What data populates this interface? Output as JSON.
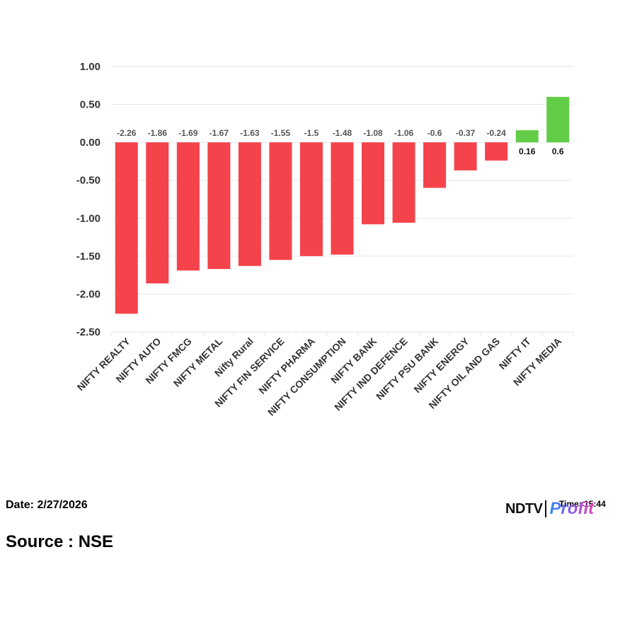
{
  "chart_data": {
    "type": "bar",
    "categories": [
      "NIFTY REALTY",
      "NIFTY AUTO",
      "NIFTY FMCG",
      "NIFTY METAL",
      "Nifty Rural",
      "NIFTY FIN SERVICE",
      "NIFTY PHARMA",
      "NIFTY CONSUMPTION",
      "NIFTY BANK",
      "NIFTY IND DEFENCE",
      "NIFTY PSU BANK",
      "NIFTY ENERGY",
      "NIFTY OIL AND GAS",
      "NIFTY IT",
      "NIFTY MEDIA"
    ],
    "values": [
      -2.26,
      -1.86,
      -1.69,
      -1.67,
      -1.63,
      -1.55,
      -1.5,
      -1.48,
      -1.08,
      -1.06,
      -0.6,
      -0.37,
      -0.24,
      0.16,
      0.6
    ],
    "value_labels": [
      "-2.26",
      "-1.86",
      "-1.69",
      "-1.67",
      "-1.63",
      "-1.55",
      "-1.5",
      "-1.48",
      "-1.08",
      "-1.06",
      "-0.6",
      "-0.37",
      "-0.24",
      "0.16",
      "0.6"
    ],
    "yticks": [
      "1.00",
      "0.50",
      "0.00",
      "-0.50",
      "-1.00",
      "-1.50",
      "-2.00",
      "-2.50"
    ],
    "ylim": [
      -2.5,
      1.0
    ],
    "grid": true,
    "colors": {
      "negative": "#f4434b",
      "positive": "#62cc46",
      "negative_label": "#555555",
      "positive_label": "#111111",
      "grid": "#e6e6e6",
      "axis_text": "#333333"
    }
  },
  "footer": {
    "date": "Date: 2/27/2026",
    "source": "Source : NSE",
    "time": "Time: 15:44"
  },
  "logo": {
    "ndtv": "NDTV",
    "profit": "Profit"
  }
}
